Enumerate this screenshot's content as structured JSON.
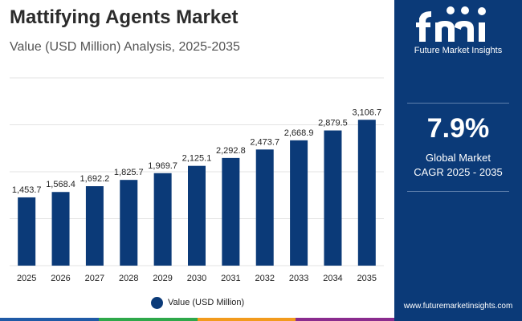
{
  "header": {
    "title": "Mattifying Agents Market",
    "subtitle": "Value (USD Million) Analysis, 2025-2035"
  },
  "chart_data": {
    "type": "bar",
    "categories": [
      "2025",
      "2026",
      "2027",
      "2028",
      "2029",
      "2030",
      "2031",
      "2032",
      "2033",
      "2034",
      "2035"
    ],
    "series": [
      {
        "name": "Value (USD Million)",
        "values": [
          1453.7,
          1568.4,
          1692.2,
          1825.7,
          1969.7,
          2125.1,
          2292.8,
          2473.7,
          2668.9,
          2879.5,
          3106.7
        ],
        "labels": [
          "1,453.7",
          "1,568.4",
          "1,692.2",
          "1,825.7",
          "1,969.7",
          "2,125.1",
          "2,292.8",
          "2,473.7",
          "2,668.9",
          "2,879.5",
          "3,106.7"
        ]
      }
    ],
    "ylim": [
      0,
      4000
    ],
    "grid": true,
    "y_ticks_shown": false,
    "legend": "bottom-center",
    "bar_color": "#0b3a78"
  },
  "legend": {
    "label": "Value (USD Million)"
  },
  "side_panel": {
    "logo_text": "Future Market Insights",
    "cagr_value": "7.9%",
    "cagr_caption_line1": "Global Market",
    "cagr_caption_line2": "CAGR 2025 - 2035",
    "website": "www.futuremarketinsights.com",
    "background_color": "#0b3a78"
  },
  "bottom_band_colors": [
    "#1f5aa6",
    "#2ea84a",
    "#f29b1d",
    "#8a2c8e"
  ]
}
